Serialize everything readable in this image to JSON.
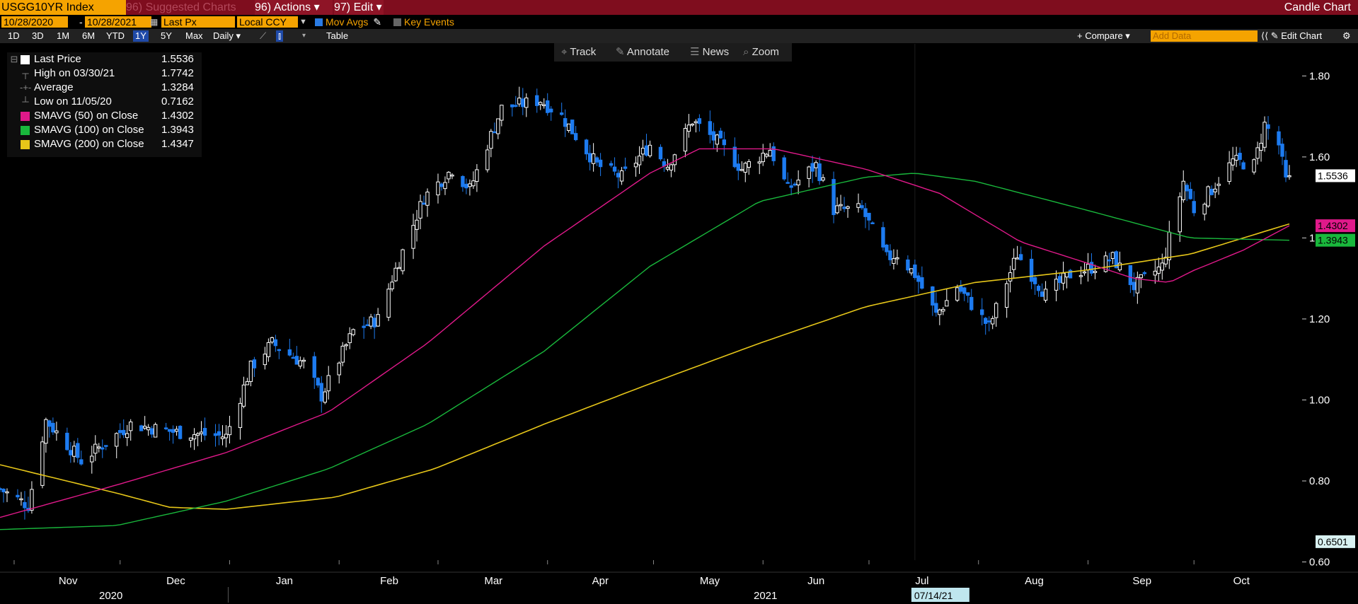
{
  "header": {
    "security": "USGG10YR Index",
    "suggested_charts": "96) Suggested Charts",
    "actions": "96) Actions ▾",
    "edit": "97) Edit ▾",
    "chart_type": "Candle Chart"
  },
  "settings": {
    "start_date": "10/28/2020",
    "date_sep": "-",
    "end_date": "10/28/2021",
    "price_field": "Last Px",
    "currency": "Local CCY",
    "mov_avgs": "Mov Avgs",
    "key_events": "Key Events"
  },
  "range_bar": {
    "ranges": [
      "1D",
      "3D",
      "1M",
      "6M",
      "YTD",
      "1Y",
      "5Y",
      "Max"
    ],
    "selected": "1Y",
    "frequency": "Daily ▾",
    "table": "Table",
    "compare": "+ Compare ▾",
    "add_data_placeholder": "Add Data",
    "edit_chart": "⟨⟨ ✎ Edit Chart",
    "gear": "⚙"
  },
  "toolbar": {
    "track": "Track",
    "annotate": "Annotate",
    "news": "News",
    "zoom": "Zoom"
  },
  "legend": {
    "last_price_label": "Last Price",
    "last_price_value": "1.5536",
    "high_label": "High on 03/30/21",
    "high_value": "1.7742",
    "average_label": "Average",
    "average_value": "1.3284",
    "low_label": "Low on 11/05/20",
    "low_value": "0.7162",
    "sma50_label": "SMAVG (50)  on Close",
    "sma50_value": "1.4302",
    "sma100_label": "SMAVG (100)  on Close",
    "sma100_value": "1.3943",
    "sma200_label": "SMAVG (200)  on Close",
    "sma200_value": "1.4347"
  },
  "colors": {
    "up_candle": "#ffffff",
    "down_candle": "#1d7bf0",
    "sma50": "#e0198a",
    "sma100": "#19b83c",
    "sma200": "#e6c619",
    "header_bg": "#7f0d1e",
    "amber": "#f5a300"
  },
  "chart_data": {
    "type": "candlestick",
    "title": "",
    "xlabel": "",
    "ylabel": "",
    "ylim": [
      0.58,
      1.86
    ],
    "y_ticks": [
      "1.80",
      "1.60",
      "1.40",
      "1.20",
      "1.00",
      "0.80",
      "0.60"
    ],
    "x_months": [
      "Nov",
      "Dec",
      "Jan",
      "Feb",
      "Mar",
      "Apr",
      "May",
      "Jun",
      "Jul",
      "Aug",
      "Sep",
      "Oct"
    ],
    "x_years": [
      "2020",
      "2021"
    ],
    "crosshair_date": "07/14/21",
    "date_range": [
      "10/28/2020",
      "10/28/2021"
    ],
    "price_anchors": [
      [
        "10/28/2020",
        0.78
      ],
      [
        "11/05/2020",
        0.74
      ],
      [
        "11/10/2020",
        0.95
      ],
      [
        "11/20/2020",
        0.85
      ],
      [
        "12/04/2020",
        0.94
      ],
      [
        "12/17/2020",
        0.92
      ],
      [
        "12/31/2020",
        0.91
      ],
      [
        "01/07/2021",
        1.08
      ],
      [
        "01/13/2021",
        1.14
      ],
      [
        "01/22/2021",
        1.09
      ],
      [
        "01/27/2021",
        1.01
      ],
      [
        "02/05/2021",
        1.17
      ],
      [
        "02/12/2021",
        1.2
      ],
      [
        "02/16/2021",
        1.3
      ],
      [
        "02/25/2021",
        1.5
      ],
      [
        "03/05/2021",
        1.57
      ],
      [
        "03/10/2021",
        1.52
      ],
      [
        "03/19/2021",
        1.72
      ],
      [
        "03/30/2021",
        1.74
      ],
      [
        "04/05/2021",
        1.7
      ],
      [
        "04/15/2021",
        1.58
      ],
      [
        "04/22/2021",
        1.55
      ],
      [
        "04/30/2021",
        1.63
      ],
      [
        "05/05/2021",
        1.58
      ],
      [
        "05/12/2021",
        1.69
      ],
      [
        "05/20/2021",
        1.63
      ],
      [
        "05/26/2021",
        1.57
      ],
      [
        "06/03/2021",
        1.62
      ],
      [
        "06/08/2021",
        1.52
      ],
      [
        "06/16/2021",
        1.58
      ],
      [
        "06/21/2021",
        1.47
      ],
      [
        "06/29/2021",
        1.47
      ],
      [
        "07/06/2021",
        1.35
      ],
      [
        "07/09/2021",
        1.36
      ],
      [
        "07/14/2021",
        1.31
      ],
      [
        "07/20/2021",
        1.21
      ],
      [
        "07/26/2021",
        1.28
      ],
      [
        "08/04/2021",
        1.18
      ],
      [
        "08/12/2021",
        1.36
      ],
      [
        "08/20/2021",
        1.26
      ],
      [
        "08/27/2021",
        1.31
      ],
      [
        "09/03/2021",
        1.33
      ],
      [
        "09/08/2021",
        1.35
      ],
      [
        "09/14/2021",
        1.28
      ],
      [
        "09/22/2021",
        1.33
      ],
      [
        "09/28/2021",
        1.54
      ],
      [
        "10/01/2021",
        1.47
      ],
      [
        "10/06/2021",
        1.52
      ],
      [
        "10/12/2021",
        1.59
      ],
      [
        "10/18/2021",
        1.58
      ],
      [
        "10/21/2021",
        1.68
      ],
      [
        "10/25/2021",
        1.63
      ],
      [
        "10/27/2021",
        1.54
      ],
      [
        "10/28/2021",
        1.5536
      ]
    ],
    "sma50_anchors": [
      [
        "10/28/2020",
        0.71
      ],
      [
        "11/30/2020",
        0.79
      ],
      [
        "12/31/2020",
        0.87
      ],
      [
        "01/29/2021",
        0.97
      ],
      [
        "02/26/2021",
        1.14
      ],
      [
        "03/31/2021",
        1.38
      ],
      [
        "04/30/2021",
        1.56
      ],
      [
        "05/14/2021",
        1.62
      ],
      [
        "06/04/2021",
        1.62
      ],
      [
        "06/30/2021",
        1.57
      ],
      [
        "07/21/2021",
        1.51
      ],
      [
        "08/13/2021",
        1.39
      ],
      [
        "08/31/2021",
        1.34
      ],
      [
        "09/14/2021",
        1.3
      ],
      [
        "09/24/2021",
        1.29
      ],
      [
        "10/01/2021",
        1.32
      ],
      [
        "10/15/2021",
        1.37
      ],
      [
        "10/28/2021",
        1.4302
      ]
    ],
    "sma100_anchors": [
      [
        "10/28/2020",
        0.68
      ],
      [
        "11/30/2020",
        0.69
      ],
      [
        "12/31/2020",
        0.75
      ],
      [
        "01/29/2021",
        0.83
      ],
      [
        "02/26/2021",
        0.94
      ],
      [
        "03/31/2021",
        1.12
      ],
      [
        "04/30/2021",
        1.33
      ],
      [
        "05/31/2021",
        1.49
      ],
      [
        "06/30/2021",
        1.55
      ],
      [
        "07/14/2021",
        1.56
      ],
      [
        "07/31/2021",
        1.54
      ],
      [
        "08/31/2021",
        1.47
      ],
      [
        "09/30/2021",
        1.4
      ],
      [
        "10/28/2021",
        1.3943
      ]
    ],
    "sma200_anchors": [
      [
        "10/28/2020",
        0.84
      ],
      [
        "11/30/2020",
        0.77
      ],
      [
        "12/15/2020",
        0.735
      ],
      [
        "12/31/2020",
        0.73
      ],
      [
        "01/31/2021",
        0.76
      ],
      [
        "02/28/2021",
        0.83
      ],
      [
        "03/31/2021",
        0.94
      ],
      [
        "04/30/2021",
        1.04
      ],
      [
        "05/31/2021",
        1.14
      ],
      [
        "06/30/2021",
        1.23
      ],
      [
        "07/31/2021",
        1.29
      ],
      [
        "08/31/2021",
        1.32
      ],
      [
        "09/30/2021",
        1.36
      ],
      [
        "10/28/2021",
        1.4347
      ]
    ],
    "right_labels": [
      {
        "value": 1.5536,
        "text": "1.5536",
        "bg": "#ffffff",
        "fg": "#000000"
      },
      {
        "value": 1.4302,
        "text": "1.4302",
        "bg": "#e0198a",
        "fg": "#000000"
      },
      {
        "value": 1.3943,
        "text": "1.3943",
        "bg": "#19b83c",
        "fg": "#000000"
      },
      {
        "value": 0.6501,
        "text": "0.6501",
        "bg": "#d9f2f2",
        "fg": "#000000"
      }
    ]
  }
}
